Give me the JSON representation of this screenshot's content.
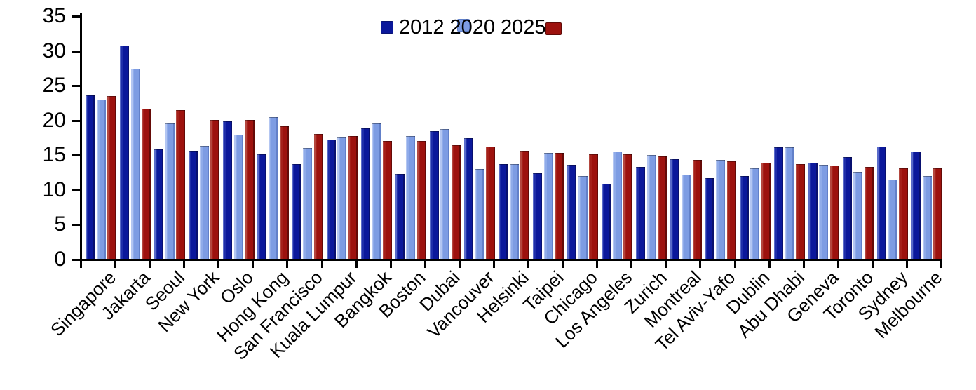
{
  "chart_data": {
    "type": "bar",
    "title": "",
    "legend_position": "top-center",
    "grid": false,
    "ylim": [
      0,
      35
    ],
    "yticks": [
      0,
      5,
      10,
      15,
      20,
      25,
      30,
      35
    ],
    "categories": [
      "Singapore",
      "Jakarta",
      "Seoul",
      "New York",
      "Oslo",
      "Hong Kong",
      "San Francisco",
      "Kuala Lumpur",
      "Bangkok",
      "Boston",
      "Dubai",
      "Vancouver",
      "Helsinki",
      "Taipei",
      "Chicago",
      "Los Angeles",
      "Zurich",
      "Montreal",
      "Tel Aviv-Yafo",
      "Dublin",
      "Abu Dhabi",
      "Geneva",
      "Toronto",
      "Sydney",
      "Melbourne"
    ],
    "series": [
      {
        "name": "2012",
        "color": "#0b189b",
        "values": [
          23.5,
          30.7,
          15.7,
          15.5,
          19.8,
          15.0,
          13.6,
          17.2,
          18.8,
          12.2,
          18.4,
          17.4,
          13.6,
          12.3,
          13.5,
          10.8,
          13.2,
          14.3,
          11.6,
          11.9,
          16.0,
          13.8,
          14.6,
          16.1,
          15.4
        ]
      },
      {
        "name": "2020",
        "color": "#7d9ce3",
        "values": [
          22.9,
          27.3,
          19.5,
          16.2,
          17.9,
          20.4,
          15.9,
          17.5,
          19.5,
          17.7,
          18.7,
          12.9,
          13.6,
          15.2,
          11.9,
          15.4,
          14.9,
          12.1,
          14.2,
          13.0,
          16.0,
          13.5,
          12.5,
          11.4,
          11.9
        ]
      },
      {
        "name": "2025",
        "color": "#9d120e",
        "values": [
          23.4,
          21.6,
          21.4,
          20.0,
          20.0,
          19.1,
          18.0,
          17.7,
          17.0,
          17.0,
          16.3,
          16.1,
          15.5,
          15.2,
          15.0,
          15.0,
          14.7,
          14.2,
          14.0,
          13.8,
          13.6,
          13.4,
          13.2,
          13.0,
          13.0
        ]
      }
    ]
  }
}
